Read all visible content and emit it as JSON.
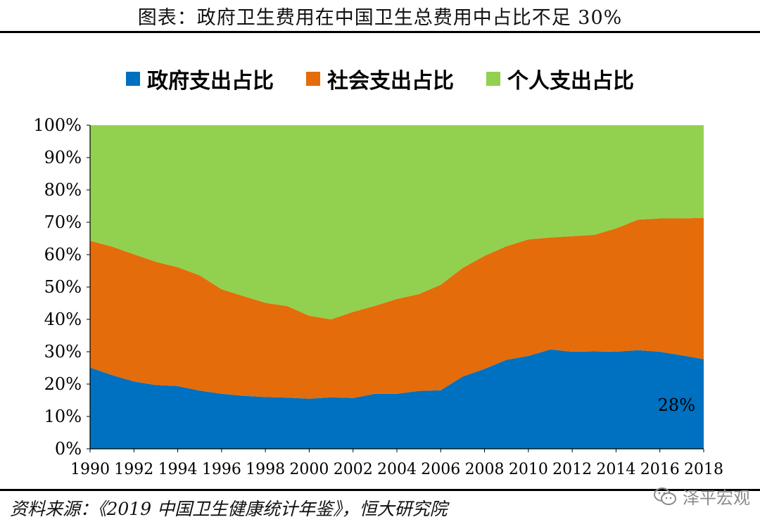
{
  "title": "图表：政府卫生费用在中国卫生总费用中占比不足 30%",
  "source": "资料来源：《2019 中国卫生健康统计年鉴》，恒大研究院",
  "watermark": "泽平宏观",
  "colors": {
    "government": "#0070C0",
    "social": "#E46C0A",
    "personal": "#92D050"
  },
  "chart_data": {
    "type": "area",
    "stacked": true,
    "x": [
      1990,
      1991,
      1992,
      1993,
      1994,
      1995,
      1996,
      1997,
      1998,
      1999,
      2000,
      2001,
      2002,
      2003,
      2004,
      2005,
      2006,
      2007,
      2008,
      2009,
      2010,
      2011,
      2012,
      2013,
      2014,
      2015,
      2016,
      2017,
      2018
    ],
    "x_tick_labels": [
      "1990",
      "1992",
      "1994",
      "1996",
      "1998",
      "2000",
      "2002",
      "2004",
      "2006",
      "2008",
      "2010",
      "2012",
      "2014",
      "2016",
      "2018"
    ],
    "y_tick_labels": [
      "0%",
      "10%",
      "20%",
      "30%",
      "40%",
      "50%",
      "60%",
      "70%",
      "80%",
      "90%",
      "100%"
    ],
    "ylim": [
      0,
      100
    ],
    "series": [
      {
        "name": "政府支出占比",
        "color": "#0070C0",
        "values": [
          25.1,
          22.8,
          20.8,
          19.7,
          19.4,
          18.0,
          17.0,
          16.4,
          16.0,
          15.8,
          15.5,
          15.9,
          15.7,
          17.0,
          17.0,
          17.9,
          18.1,
          22.3,
          24.7,
          27.5,
          28.7,
          30.7,
          30.0,
          30.1,
          30.0,
          30.5,
          30.0,
          28.9,
          27.7
        ]
      },
      {
        "name": "社会支出占比",
        "color": "#E46C0A",
        "values": [
          39.2,
          39.7,
          39.3,
          38.1,
          36.7,
          35.6,
          32.3,
          30.8,
          29.1,
          28.3,
          25.6,
          24.1,
          26.6,
          27.2,
          29.3,
          29.9,
          32.6,
          33.6,
          34.9,
          35.1,
          36.0,
          34.6,
          35.7,
          36.0,
          38.1,
          40.3,
          41.2,
          42.3,
          43.7
        ]
      },
      {
        "name": "个人支出占比",
        "color": "#92D050",
        "values": [
          35.7,
          37.5,
          39.9,
          42.2,
          43.9,
          46.4,
          50.7,
          52.8,
          54.9,
          55.9,
          58.9,
          60.0,
          57.7,
          55.8,
          53.7,
          52.2,
          49.3,
          44.1,
          40.4,
          37.5,
          35.3,
          34.7,
          34.3,
          33.9,
          31.9,
          29.3,
          28.8,
          28.8,
          28.6
        ]
      }
    ],
    "annotations": [
      {
        "text": "28%",
        "series": "政府支出占比",
        "x": 2018
      }
    ],
    "legend_position": "top",
    "grid": false
  }
}
